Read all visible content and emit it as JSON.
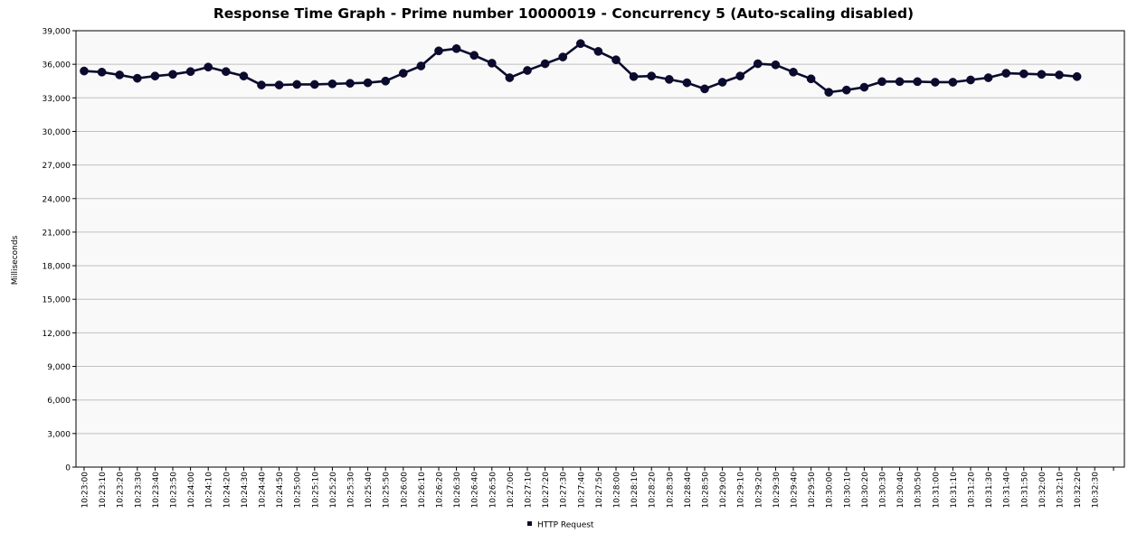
{
  "chart_data": {
    "type": "line",
    "title": "Response Time Graph - Prime number 10000019 - Concurrency 5 (Auto-scaling disabled)",
    "xlabel": "",
    "ylabel": "Milliseconds",
    "ylim": [
      0,
      39000
    ],
    "y_ticks": [
      0,
      3000,
      6000,
      9000,
      12000,
      15000,
      18000,
      21000,
      24000,
      27000,
      30000,
      33000,
      36000,
      39000
    ],
    "y_tick_labels": [
      "0",
      "3,000",
      "6,000",
      "9,000",
      "12,000",
      "15,000",
      "18,000",
      "21,000",
      "24,000",
      "27,000",
      "30,000",
      "33,000",
      "36,000",
      "39,000"
    ],
    "x_ticks": [
      "10:23:00",
      "10:23:10",
      "10:23:20",
      "10:23:30",
      "10:23:40",
      "10:23:50",
      "10:24:00",
      "10:24:10",
      "10:24:20",
      "10:24:30",
      "10:24:40",
      "10:24:50",
      "10:25:00",
      "10:25:10",
      "10:25:20",
      "10:25:30",
      "10:25:40",
      "10:25:50",
      "10:26:00",
      "10:26:10",
      "10:26:20",
      "10:26:30",
      "10:26:40",
      "10:26:50",
      "10:27:00",
      "10:27:10",
      "10:27:20",
      "10:27:30",
      "10:27:40",
      "10:27:50",
      "10:28:00",
      "10:28:10",
      "10:28:20",
      "10:28:30",
      "10:28:40",
      "10:28:50",
      "10:29:00",
      "10:29:10",
      "10:29:20",
      "10:29:30",
      "10:29:40",
      "10:29:50",
      "10:30:00",
      "10:30:10",
      "10:30:20",
      "10:30:30",
      "10:30:40",
      "10:30:50",
      "10:31:00",
      "10:31:10",
      "10:31:20",
      "10:31:30",
      "10:31:40",
      "10:31:50",
      "10:32:00",
      "10:32:10",
      "10:32:20",
      "10:32:30"
    ],
    "grid": true,
    "legend_position": "bottom",
    "series": [
      {
        "name": "HTTP Request",
        "color": "#0b0b2e",
        "x": [
          "10:23:00",
          "10:23:10",
          "10:23:20",
          "10:23:30",
          "10:23:40",
          "10:23:50",
          "10:24:00",
          "10:24:10",
          "10:24:20",
          "10:24:30",
          "10:24:40",
          "10:24:50",
          "10:25:00",
          "10:25:10",
          "10:25:20",
          "10:25:30",
          "10:25:40",
          "10:25:50",
          "10:26:00",
          "10:26:10",
          "10:26:20",
          "10:26:30",
          "10:26:40",
          "10:26:50",
          "10:27:00",
          "10:27:10",
          "10:27:20",
          "10:27:30",
          "10:27:40",
          "10:27:50",
          "10:28:00",
          "10:28:10",
          "10:28:20",
          "10:28:30",
          "10:28:40",
          "10:28:50",
          "10:29:00",
          "10:29:10",
          "10:29:20",
          "10:29:30",
          "10:29:40",
          "10:29:50",
          "10:30:00",
          "10:30:10",
          "10:30:20",
          "10:30:30",
          "10:30:40",
          "10:30:50",
          "10:31:00",
          "10:31:10",
          "10:31:20",
          "10:31:30",
          "10:31:40",
          "10:31:50",
          "10:32:00",
          "10:32:10",
          "10:32:20"
        ],
        "values": [
          35400,
          35300,
          35050,
          34750,
          34950,
          35100,
          35350,
          35750,
          35350,
          34950,
          34150,
          34150,
          34200,
          34200,
          34250,
          34300,
          34350,
          34500,
          35200,
          35850,
          37200,
          37400,
          36800,
          36100,
          34800,
          35450,
          36050,
          36650,
          37850,
          37150,
          36400,
          34900,
          34950,
          34650,
          34350,
          33800,
          34400,
          34950,
          36050,
          35950,
          35300,
          34700,
          33500,
          33700,
          33950,
          34450,
          34450,
          34450,
          34400,
          34400,
          34600,
          34800,
          35200,
          35150,
          35100,
          35050,
          34900
        ]
      }
    ]
  }
}
